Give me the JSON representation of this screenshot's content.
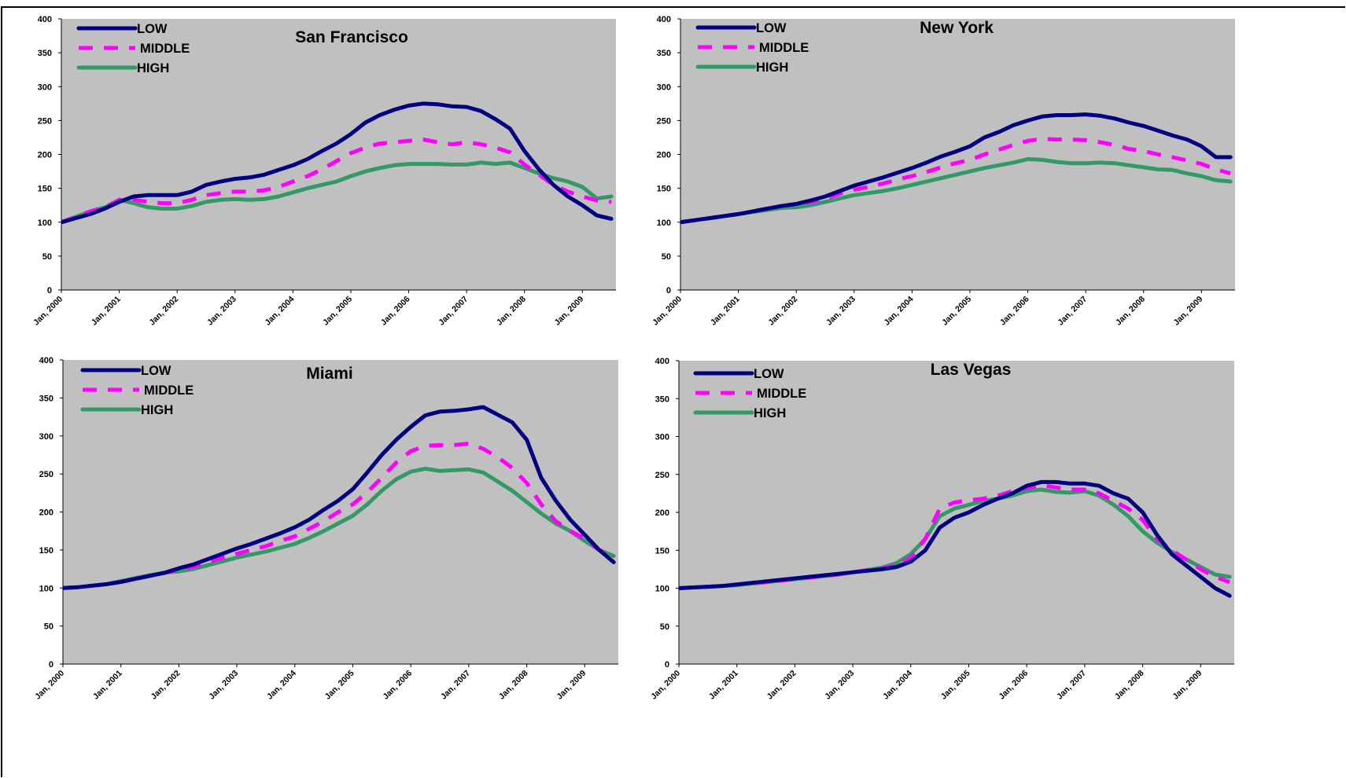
{
  "series_style": {
    "LOW": {
      "color": "#000080",
      "dash": ""
    },
    "MIDDLE": {
      "color": "#ff00ff",
      "dash": "18,14"
    },
    "HIGH": {
      "color": "#339966",
      "dash": ""
    }
  },
  "plot_bg": "#c0c0c0",
  "chart_data": [
    {
      "type": "line",
      "title": "San Francisco",
      "ylim": [
        0,
        400
      ],
      "yticks": [
        0,
        50,
        100,
        150,
        200,
        250,
        300,
        350,
        400
      ],
      "xlim": [
        2000.0,
        2009.58
      ],
      "xtick_labels": [
        "Jan, 2000",
        "Jan, 2001",
        "Jan, 2002",
        "Jan, 2003",
        "Jan, 2004",
        "Jan, 2005",
        "Jan, 2006",
        "Jan, 2007",
        "Jan, 2008",
        "Jan, 2009"
      ],
      "legend_position": "top-left",
      "grid": false,
      "x": [
        2000.0,
        2000.25,
        2000.5,
        2000.75,
        2001.0,
        2001.25,
        2001.5,
        2001.75,
        2002.0,
        2002.25,
        2002.5,
        2002.75,
        2003.0,
        2003.25,
        2003.5,
        2003.75,
        2004.0,
        2004.25,
        2004.5,
        2004.75,
        2005.0,
        2005.25,
        2005.5,
        2005.75,
        2006.0,
        2006.25,
        2006.5,
        2006.75,
        2007.0,
        2007.25,
        2007.5,
        2007.75,
        2008.0,
        2008.25,
        2008.5,
        2008.75,
        2009.0,
        2009.25,
        2009.5
      ],
      "series": [
        {
          "name": "LOW",
          "values": [
            100,
            106,
            112,
            120,
            130,
            138,
            140,
            140,
            140,
            145,
            155,
            160,
            164,
            166,
            170,
            177,
            184,
            193,
            205,
            216,
            230,
            247,
            258,
            266,
            272,
            275,
            274,
            271,
            270,
            264,
            252,
            238,
            205,
            178,
            155,
            138,
            125,
            110,
            105
          ]
        },
        {
          "name": "MIDDLE",
          "values": [
            100,
            108,
            116,
            122,
            133,
            133,
            130,
            128,
            128,
            133,
            140,
            143,
            145,
            145,
            147,
            152,
            160,
            168,
            178,
            190,
            202,
            210,
            216,
            218,
            220,
            222,
            218,
            215,
            218,
            215,
            210,
            203,
            185,
            170,
            155,
            145,
            138,
            132,
            130
          ]
        },
        {
          "name": "HIGH",
          "values": [
            100,
            108,
            116,
            122,
            133,
            128,
            122,
            120,
            120,
            124,
            130,
            133,
            134,
            133,
            134,
            138,
            144,
            150,
            155,
            160,
            168,
            175,
            180,
            184,
            186,
            186,
            186,
            185,
            185,
            188,
            186,
            188,
            180,
            172,
            165,
            160,
            152,
            135,
            138
          ]
        }
      ]
    },
    {
      "type": "line",
      "title": "New York",
      "ylim": [
        0,
        400
      ],
      "yticks": [
        0,
        50,
        100,
        150,
        200,
        250,
        300,
        350,
        400
      ],
      "xlim": [
        2000.0,
        2009.58
      ],
      "xtick_labels": [
        "Jan, 2000",
        "Jan, 2001",
        "Jan, 2002",
        "Jan, 2003",
        "Jan, 2004",
        "Jan, 2005",
        "Jan, 2006",
        "Jan, 2007",
        "Jan, 2008",
        "Jan, 2009"
      ],
      "legend_position": "top-left",
      "grid": false,
      "x": [
        2000.0,
        2000.25,
        2000.5,
        2000.75,
        2001.0,
        2001.25,
        2001.5,
        2001.75,
        2002.0,
        2002.25,
        2002.5,
        2002.75,
        2003.0,
        2003.25,
        2003.5,
        2003.75,
        2004.0,
        2004.25,
        2004.5,
        2004.75,
        2005.0,
        2005.25,
        2005.5,
        2005.75,
        2006.0,
        2006.25,
        2006.5,
        2006.75,
        2007.0,
        2007.25,
        2007.5,
        2007.75,
        2008.0,
        2008.25,
        2008.5,
        2008.75,
        2009.0,
        2009.25,
        2009.5
      ],
      "series": [
        {
          "name": "LOW",
          "values": [
            100,
            103,
            106,
            109,
            112,
            116,
            120,
            124,
            127,
            132,
            138,
            146,
            154,
            160,
            166,
            173,
            180,
            188,
            197,
            204,
            212,
            225,
            233,
            243,
            250,
            256,
            258,
            258,
            259,
            257,
            253,
            247,
            242,
            235,
            228,
            222,
            212,
            196,
            196
          ]
        },
        {
          "name": "MIDDLE",
          "values": [
            100,
            103,
            106,
            109,
            112,
            116,
            120,
            124,
            126,
            130,
            135,
            142,
            148,
            152,
            157,
            163,
            168,
            174,
            181,
            187,
            192,
            200,
            207,
            214,
            220,
            223,
            222,
            222,
            221,
            218,
            214,
            208,
            205,
            200,
            196,
            191,
            186,
            178,
            172
          ]
        },
        {
          "name": "HIGH",
          "values": [
            100,
            103,
            106,
            109,
            112,
            115,
            118,
            121,
            122,
            125,
            130,
            135,
            140,
            143,
            146,
            150,
            155,
            160,
            165,
            170,
            175,
            180,
            184,
            188,
            193,
            192,
            189,
            187,
            187,
            188,
            187,
            184,
            181,
            178,
            177,
            172,
            168,
            162,
            160
          ]
        }
      ]
    },
    {
      "type": "line",
      "title": "Miami",
      "ylim": [
        0,
        400
      ],
      "yticks": [
        0,
        50,
        100,
        150,
        200,
        250,
        300,
        350,
        400
      ],
      "xlim": [
        2000.0,
        2009.58
      ],
      "xtick_labels": [
        "Jan, 2000",
        "Jan, 2001",
        "Jan, 2002",
        "Jan, 2003",
        "Jan, 2004",
        "Jan, 2005",
        "Jan, 2006",
        "Jan, 2007",
        "Jan, 2008",
        "Jan, 2009"
      ],
      "legend_position": "top-left",
      "grid": false,
      "x": [
        2000.0,
        2000.25,
        2000.5,
        2000.75,
        2001.0,
        2001.25,
        2001.5,
        2001.75,
        2002.0,
        2002.25,
        2002.5,
        2002.75,
        2003.0,
        2003.25,
        2003.5,
        2003.75,
        2004.0,
        2004.25,
        2004.5,
        2004.75,
        2005.0,
        2005.25,
        2005.5,
        2005.75,
        2006.0,
        2006.25,
        2006.5,
        2006.75,
        2007.0,
        2007.25,
        2007.5,
        2007.75,
        2008.0,
        2008.25,
        2008.5,
        2008.75,
        2009.0,
        2009.25,
        2009.5
      ],
      "series": [
        {
          "name": "LOW",
          "values": [
            100,
            101,
            103,
            105,
            108,
            112,
            116,
            120,
            126,
            131,
            138,
            145,
            152,
            158,
            165,
            172,
            180,
            190,
            203,
            215,
            230,
            252,
            275,
            295,
            312,
            327,
            332,
            333,
            335,
            338,
            328,
            318,
            295,
            245,
            215,
            190,
            170,
            150,
            134
          ]
        },
        {
          "name": "MIDDLE",
          "values": [
            100,
            101,
            103,
            105,
            108,
            112,
            116,
            120,
            124,
            128,
            134,
            140,
            145,
            150,
            155,
            162,
            168,
            178,
            188,
            200,
            210,
            226,
            245,
            265,
            280,
            287,
            288,
            288,
            290,
            283,
            272,
            258,
            238,
            210,
            188,
            175,
            165,
            150,
            142
          ]
        },
        {
          "name": "HIGH",
          "values": [
            100,
            101,
            103,
            105,
            109,
            113,
            117,
            120,
            122,
            125,
            130,
            135,
            140,
            144,
            148,
            153,
            158,
            166,
            175,
            185,
            195,
            210,
            228,
            243,
            253,
            257,
            254,
            255,
            256,
            252,
            240,
            228,
            213,
            198,
            185,
            175,
            162,
            150,
            142
          ]
        }
      ]
    },
    {
      "type": "line",
      "title": "Las Vegas",
      "ylim": [
        0,
        400
      ],
      "yticks": [
        0,
        50,
        100,
        150,
        200,
        250,
        300,
        350,
        400
      ],
      "xlim": [
        2000.0,
        2009.58
      ],
      "xtick_labels": [
        "Jan, 2000",
        "Jan, 2001",
        "Jan, 2002",
        "Jan, 2003",
        "Jan, 2004",
        "Jan, 2005",
        "Jan, 2006",
        "Jan, 2007",
        "Jan, 2008",
        "Jan, 2009"
      ],
      "legend_position": "top-left",
      "grid": false,
      "x": [
        2000.0,
        2000.25,
        2000.5,
        2000.75,
        2001.0,
        2001.25,
        2001.5,
        2001.75,
        2002.0,
        2002.25,
        2002.5,
        2002.75,
        2003.0,
        2003.25,
        2003.5,
        2003.75,
        2004.0,
        2004.25,
        2004.5,
        2004.75,
        2005.0,
        2005.25,
        2005.5,
        2005.75,
        2006.0,
        2006.25,
        2006.5,
        2006.75,
        2007.0,
        2007.25,
        2007.5,
        2007.75,
        2008.0,
        2008.25,
        2008.5,
        2008.75,
        2009.0,
        2009.25,
        2009.5
      ],
      "series": [
        {
          "name": "LOW",
          "values": [
            100,
            101,
            102,
            103,
            105,
            107,
            109,
            111,
            113,
            115,
            117,
            119,
            121,
            123,
            125,
            128,
            135,
            150,
            180,
            193,
            200,
            210,
            218,
            225,
            235,
            240,
            240,
            238,
            238,
            235,
            225,
            218,
            200,
            170,
            145,
            130,
            115,
            100,
            90
          ]
        },
        {
          "name": "MIDDLE",
          "values": [
            100,
            101,
            102,
            103,
            105,
            106,
            108,
            110,
            112,
            114,
            116,
            118,
            121,
            124,
            126,
            130,
            140,
            165,
            205,
            213,
            216,
            218,
            222,
            228,
            232,
            236,
            233,
            230,
            230,
            225,
            215,
            205,
            190,
            165,
            150,
            138,
            125,
            115,
            108
          ]
        },
        {
          "name": "HIGH",
          "values": [
            100,
            101,
            102,
            103,
            104,
            106,
            108,
            110,
            112,
            114,
            116,
            118,
            121,
            124,
            127,
            133,
            145,
            165,
            195,
            205,
            210,
            215,
            218,
            222,
            228,
            230,
            227,
            226,
            228,
            222,
            210,
            195,
            175,
            160,
            148,
            138,
            128,
            118,
            115
          ]
        }
      ]
    }
  ]
}
